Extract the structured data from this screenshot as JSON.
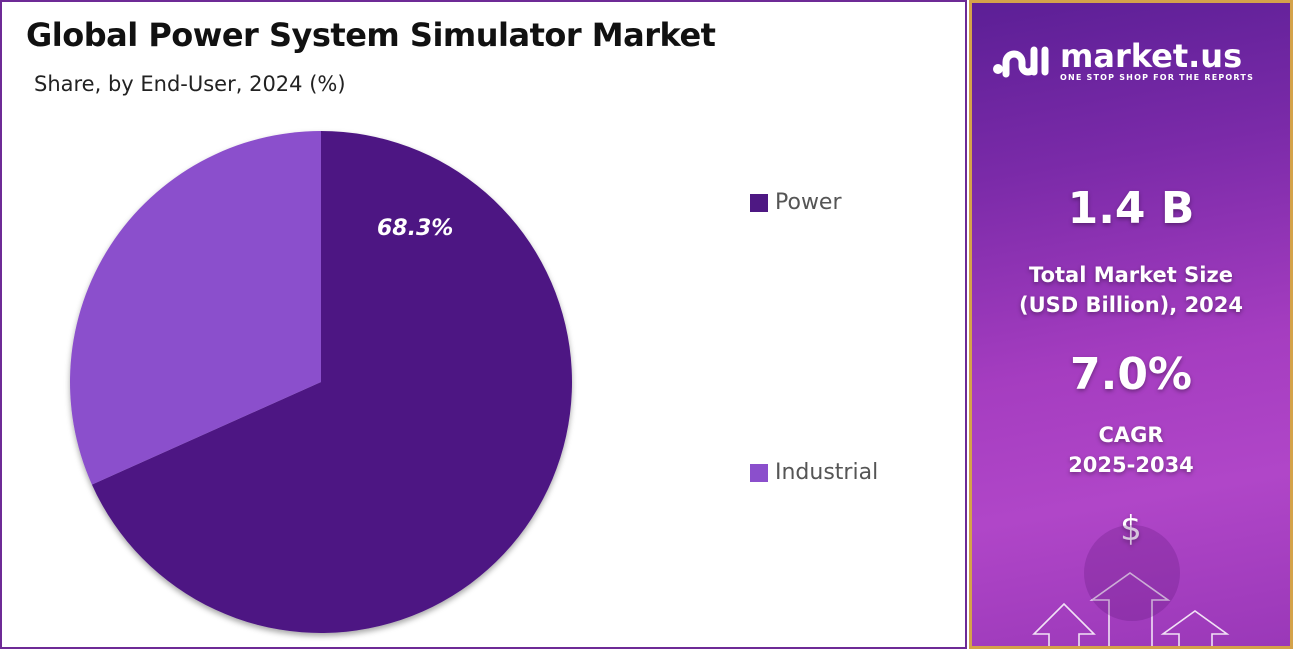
{
  "header": {
    "title": "Global Power System Simulator Market",
    "subtitle": "Share, by End-User, 2024 (%)"
  },
  "pie": {
    "label": "68.3%"
  },
  "legend": [
    {
      "label": "Power",
      "color": "#4e1883"
    },
    {
      "label": "Industrial",
      "color": "#8b4fcc"
    }
  ],
  "sidebar": {
    "logo_name": "market.us",
    "logo_tagline": "ONE STOP SHOP FOR THE REPORTS",
    "market_size_value": "1.4 B",
    "market_size_label_1": "Total Market Size",
    "market_size_label_2": "(USD Billion), 2024",
    "cagr_value": "7.0%",
    "cagr_label_1": "CAGR",
    "cagr_label_2": "2025-2034",
    "dollar_icon": "$"
  },
  "chart_data": {
    "type": "pie",
    "title": "Global Power System Simulator Market",
    "subtitle": "Share, by End-User, 2024 (%)",
    "categories": [
      "Power",
      "Industrial"
    ],
    "values": [
      68.3,
      31.7
    ],
    "colors": [
      "#4e1883",
      "#8b4fcc"
    ],
    "data_labels": [
      "68.3%",
      ""
    ],
    "legend_position": "right"
  }
}
